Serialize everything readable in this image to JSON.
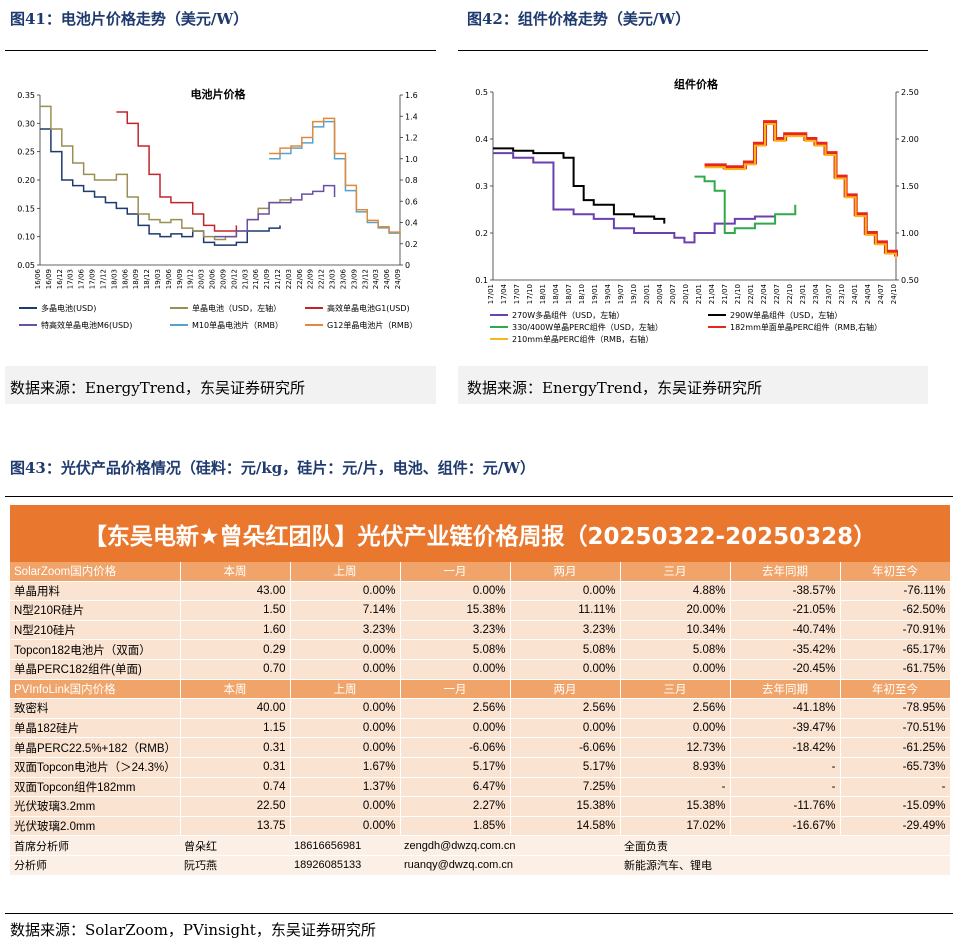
{
  "fig41": {
    "title": "图41：电池片价格走势（美元/W）",
    "source": "数据来源：EnergyTrend，东吴证券研究所"
  },
  "fig42": {
    "title": "图42：组件价格走势（美元/W）",
    "source": "数据来源：EnergyTrend，东吴证券研究所"
  },
  "fig43": {
    "title": "图43：光伏产品价格情况（硅料：元/kg，硅片：元/片，电池、组件：元/W）",
    "source": "数据来源：SolarZoom，PVinsight，东吴证券研究所"
  },
  "colors": {
    "title_blue": "#1f3a6e",
    "table_orange": "#e9772e",
    "section_orange": "#f0a46a",
    "row_peach": "#fbe3d1"
  },
  "chart_data": [
    {
      "type": "line",
      "title": "电池片价格",
      "ylim": [
        0.05,
        0.35
      ],
      "yticks": [
        "0.35",
        "0.30",
        "0.25",
        "0.20",
        "0.15",
        "0.10",
        "0.05"
      ],
      "y2lim": [
        0,
        1.6
      ],
      "y2ticks": [
        "1.6",
        "1.4",
        "1.2",
        "1.0",
        "0.8",
        "0.6",
        "0.4",
        "0.2",
        "0"
      ],
      "x_labels": [
        "16/06",
        "16/09",
        "16/12",
        "17/03",
        "17/06",
        "17/09",
        "17/12",
        "18/03",
        "18/06",
        "18/09",
        "18/12",
        "19/03",
        "19/06",
        "19/09",
        "19/12",
        "20/03",
        "20/06",
        "20/09",
        "20/12",
        "21/03",
        "21/06",
        "21/09",
        "21/12",
        "22/03",
        "22/06",
        "22/09",
        "22/12",
        "23/03",
        "23/06",
        "23/09",
        "23/12",
        "24/03",
        "24/06",
        "24/09"
      ],
      "legend_position": "bottom",
      "series": [
        {
          "name": "多晶电池(USD)",
          "axis": "left",
          "color": "#1f3a6e",
          "points": [
            [
              0,
              0.29
            ],
            [
              1,
              0.25
            ],
            [
              2,
              0.2
            ],
            [
              3,
              0.19
            ],
            [
              4,
              0.18
            ],
            [
              5,
              0.17
            ],
            [
              6,
              0.16
            ],
            [
              7,
              0.15
            ],
            [
              8,
              0.14
            ],
            [
              9,
              0.12
            ],
            [
              10,
              0.105
            ],
            [
              11,
              0.1
            ],
            [
              12,
              0.105
            ],
            [
              13,
              0.1
            ],
            [
              14,
              0.11
            ],
            [
              15,
              0.09
            ],
            [
              16,
              0.085
            ],
            [
              17,
              0.085
            ],
            [
              18,
              0.09
            ],
            [
              19,
              0.11
            ],
            [
              20,
              0.11
            ],
            [
              21,
              0.115
            ],
            [
              22,
              0.12
            ]
          ]
        },
        {
          "name": "单晶电池（USD，左轴）",
          "axis": "left",
          "color": "#9a8f52",
          "points": [
            [
              0,
              0.33
            ],
            [
              1,
              0.29
            ],
            [
              2,
              0.26
            ],
            [
              3,
              0.23
            ],
            [
              4,
              0.21
            ],
            [
              5,
              0.2
            ],
            [
              6,
              0.2
            ],
            [
              7,
              0.21
            ],
            [
              8,
              0.17
            ],
            [
              9,
              0.14
            ],
            [
              10,
              0.13
            ],
            [
              11,
              0.125
            ],
            [
              12,
              0.13
            ],
            [
              13,
              0.115
            ],
            [
              14,
              0.11
            ],
            [
              15,
              0.1
            ],
            [
              16,
              0.095
            ],
            [
              17,
              0.1
            ],
            [
              18,
              0.11
            ],
            [
              19,
              0.13
            ],
            [
              20,
              0.15
            ],
            [
              21,
              0.16
            ],
            [
              22,
              0.165
            ],
            [
              23,
              0.17
            ]
          ]
        },
        {
          "name": "高效单晶电池G1(USD)",
          "axis": "left",
          "color": "#c0252b",
          "points": [
            [
              7,
              0.32
            ],
            [
              8,
              0.3
            ],
            [
              9,
              0.26
            ],
            [
              10,
              0.21
            ],
            [
              11,
              0.17
            ],
            [
              12,
              0.16
            ],
            [
              13,
              0.16
            ],
            [
              14,
              0.14
            ],
            [
              15,
              0.12
            ],
            [
              16,
              0.11
            ],
            [
              17,
              0.11
            ],
            [
              18,
              0.12
            ]
          ]
        },
        {
          "name": "特高效单晶电池M6(USD)",
          "axis": "left",
          "color": "#6a4fa3",
          "points": [
            [
              16,
              0.1
            ],
            [
              17,
              0.1
            ],
            [
              18,
              0.11
            ],
            [
              19,
              0.13
            ],
            [
              20,
              0.14
            ],
            [
              21,
              0.16
            ],
            [
              22,
              0.16
            ],
            [
              23,
              0.165
            ],
            [
              24,
              0.175
            ],
            [
              25,
              0.18
            ],
            [
              26,
              0.19
            ],
            [
              27,
              0.17
            ]
          ]
        },
        {
          "name": "M10单晶电池片（RMB）",
          "axis": "right",
          "color": "#5aa0c8",
          "points": [
            [
              21,
              1.0
            ],
            [
              22,
              1.05
            ],
            [
              23,
              1.1
            ],
            [
              24,
              1.15
            ],
            [
              25,
              1.3
            ],
            [
              26,
              1.35
            ],
            [
              27,
              1.0
            ],
            [
              28,
              0.7
            ],
            [
              29,
              0.5
            ],
            [
              30,
              0.4
            ],
            [
              31,
              0.35
            ],
            [
              32,
              0.3
            ],
            [
              33,
              0.28
            ]
          ]
        },
        {
          "name": "G12单晶电池片（RMB）",
          "axis": "right",
          "color": "#e08a3c",
          "points": [
            [
              21,
              1.05
            ],
            [
              22,
              1.1
            ],
            [
              23,
              1.12
            ],
            [
              24,
              1.2
            ],
            [
              25,
              1.35
            ],
            [
              26,
              1.38
            ],
            [
              27,
              1.05
            ],
            [
              28,
              0.75
            ],
            [
              29,
              0.52
            ],
            [
              30,
              0.42
            ],
            [
              31,
              0.36
            ],
            [
              32,
              0.31
            ],
            [
              33,
              0.28
            ]
          ]
        }
      ]
    },
    {
      "type": "line",
      "title": "组件价格",
      "ylim": [
        0.1,
        0.5
      ],
      "yticks": [
        "0.5",
        "0.4",
        "0.3",
        "0.2",
        "0.1"
      ],
      "y2lim": [
        0.5,
        2.5
      ],
      "y2ticks": [
        "2.50",
        "2.00",
        "1.50",
        "1.00",
        "0.50"
      ],
      "x_labels": [
        "17/01",
        "17/04",
        "17/07",
        "17/10",
        "18/01",
        "18/04",
        "18/07",
        "18/10",
        "19/01",
        "19/04",
        "19/07",
        "19/10",
        "20/01",
        "20/04",
        "20/07",
        "20/10",
        "21/01",
        "21/04",
        "21/07",
        "21/10",
        "22/01",
        "22/04",
        "22/07",
        "22/10",
        "23/01",
        "23/04",
        "23/07",
        "23/10",
        "24/01",
        "24/04",
        "24/07",
        "24/10"
      ],
      "legend_position": "bottom",
      "series": [
        {
          "name": "270W多晶组件（USD，左轴）",
          "axis": "left",
          "color": "#6a3fb0",
          "points": [
            [
              0,
              0.37
            ],
            [
              2,
              0.36
            ],
            [
              4,
              0.35
            ],
            [
              6,
              0.25
            ],
            [
              8,
              0.24
            ],
            [
              10,
              0.23
            ],
            [
              12,
              0.21
            ],
            [
              14,
              0.2
            ],
            [
              16,
              0.2
            ],
            [
              18,
              0.19
            ],
            [
              19,
              0.18
            ],
            [
              20,
              0.2
            ],
            [
              22,
              0.22
            ],
            [
              24,
              0.23
            ],
            [
              26,
              0.235
            ],
            [
              28,
              0.235
            ]
          ]
        },
        {
          "name": "290W单晶组件（USD，左轴）",
          "axis": "left",
          "color": "#000000",
          "points": [
            [
              0,
              0.38
            ],
            [
              2,
              0.375
            ],
            [
              4,
              0.37
            ],
            [
              6,
              0.37
            ],
            [
              7,
              0.36
            ],
            [
              8,
              0.3
            ],
            [
              9,
              0.27
            ],
            [
              10,
              0.26
            ],
            [
              12,
              0.24
            ],
            [
              14,
              0.235
            ],
            [
              16,
              0.23
            ],
            [
              17,
              0.22
            ]
          ]
        },
        {
          "name": "330/400W单晶PERC组件（USD，左轴）",
          "axis": "left",
          "color": "#2eaa4a",
          "points": [
            [
              20,
              0.32
            ],
            [
              21,
              0.31
            ],
            [
              22,
              0.29
            ],
            [
              23,
              0.2
            ],
            [
              24,
              0.21
            ],
            [
              26,
              0.22
            ],
            [
              28,
              0.24
            ],
            [
              30,
              0.26
            ]
          ]
        },
        {
          "name": "182mm单面单晶PERC组件（RMB,右轴）",
          "axis": "right",
          "color": "#e8261c",
          "points": [
            [
              21,
              1.72
            ],
            [
              23,
              1.7
            ],
            [
              25,
              1.75
            ],
            [
              26,
              1.95
            ],
            [
              27,
              2.18
            ],
            [
              28,
              2.0
            ],
            [
              29,
              2.05
            ],
            [
              30,
              2.05
            ],
            [
              31,
              2.0
            ],
            [
              32,
              1.95
            ],
            [
              33,
              1.85
            ],
            [
              34,
              1.6
            ],
            [
              35,
              1.4
            ],
            [
              36,
              1.2
            ],
            [
              37,
              1.0
            ],
            [
              38,
              0.9
            ],
            [
              39,
              0.8
            ],
            [
              40,
              0.75
            ]
          ]
        },
        {
          "name": "210mm单晶PERC组件（RMB，右轴）",
          "axis": "right",
          "color": "#f7b71d",
          "points": [
            [
              21,
              1.7
            ],
            [
              23,
              1.68
            ],
            [
              25,
              1.73
            ],
            [
              26,
              1.93
            ],
            [
              27,
              2.16
            ],
            [
              28,
              1.98
            ],
            [
              29,
              2.03
            ],
            [
              30,
              2.03
            ],
            [
              31,
              1.98
            ],
            [
              32,
              1.93
            ],
            [
              33,
              1.83
            ],
            [
              34,
              1.58
            ],
            [
              35,
              1.38
            ],
            [
              36,
              1.18
            ],
            [
              37,
              0.98
            ],
            [
              38,
              0.88
            ],
            [
              39,
              0.78
            ],
            [
              40,
              0.73
            ]
          ]
        }
      ]
    },
    {
      "type": "table",
      "title": "【东吴电新★曾朵红团队】光伏产业链价格周报（20250322-20250328）",
      "sections": [
        {
          "header": [
            "SolarZoom国内价格",
            "本周",
            "上周",
            "一月",
            "两月",
            "三月",
            "去年同期",
            "年初至今"
          ],
          "rows": [
            [
              "单晶用料",
              "43.00",
              "0.00%",
              "0.00%",
              "0.00%",
              "4.88%",
              "-38.57%",
              "-76.11%"
            ],
            [
              "N型210R硅片",
              "1.50",
              "7.14%",
              "15.38%",
              "11.11%",
              "20.00%",
              "-21.05%",
              "-62.50%"
            ],
            [
              "N型210硅片",
              "1.60",
              "3.23%",
              "3.23%",
              "3.23%",
              "10.34%",
              "-40.74%",
              "-70.91%"
            ],
            [
              "Topcon182电池片（双面）",
              "0.29",
              "0.00%",
              "5.08%",
              "5.08%",
              "5.08%",
              "-35.42%",
              "-65.17%"
            ],
            [
              "单晶PERC182组件(单面)",
              "0.70",
              "0.00%",
              "0.00%",
              "0.00%",
              "0.00%",
              "-20.45%",
              "-61.75%"
            ]
          ]
        },
        {
          "header": [
            "PVInfoLink国内价格",
            "本周",
            "上周",
            "一月",
            "两月",
            "三月",
            "去年同期",
            "年初至今"
          ],
          "rows": [
            [
              "致密料",
              "40.00",
              "0.00%",
              "2.56%",
              "2.56%",
              "2.56%",
              "-41.18%",
              "-78.95%"
            ],
            [
              "单晶182硅片",
              "1.15",
              "0.00%",
              "0.00%",
              "0.00%",
              "0.00%",
              "-39.47%",
              "-70.51%"
            ],
            [
              "单晶PERC22.5%+182（RMB）",
              "0.31",
              "0.00%",
              "-6.06%",
              "-6.06%",
              "12.73%",
              "-18.42%",
              "-61.25%"
            ],
            [
              "双面Topcon电池片（＞24.3%）",
              "0.31",
              "1.67%",
              "5.17%",
              "5.17%",
              "8.93%",
              "-",
              "-65.73%"
            ],
            [
              "双面Topcon组件182mm",
              "0.74",
              "1.37%",
              "6.47%",
              "7.25%",
              "-",
              "-",
              "-"
            ],
            [
              "光伏玻璃3.2mm",
              "22.50",
              "0.00%",
              "2.27%",
              "15.38%",
              "15.38%",
              "-11.76%",
              "-15.09%"
            ],
            [
              "光伏玻璃2.0mm",
              "13.75",
              "0.00%",
              "1.85%",
              "14.58%",
              "17.02%",
              "-16.67%",
              "-29.49%"
            ]
          ]
        }
      ],
      "contacts": [
        [
          "首席分析师",
          "曾朵红",
          "18616656981",
          "zengdh@dwzq.com.cn",
          "全面负责"
        ],
        [
          "分析师",
          "阮巧燕",
          "18926085133",
          "ruanqy@dwzq.com.cn",
          "新能源汽车、锂电"
        ]
      ]
    }
  ]
}
